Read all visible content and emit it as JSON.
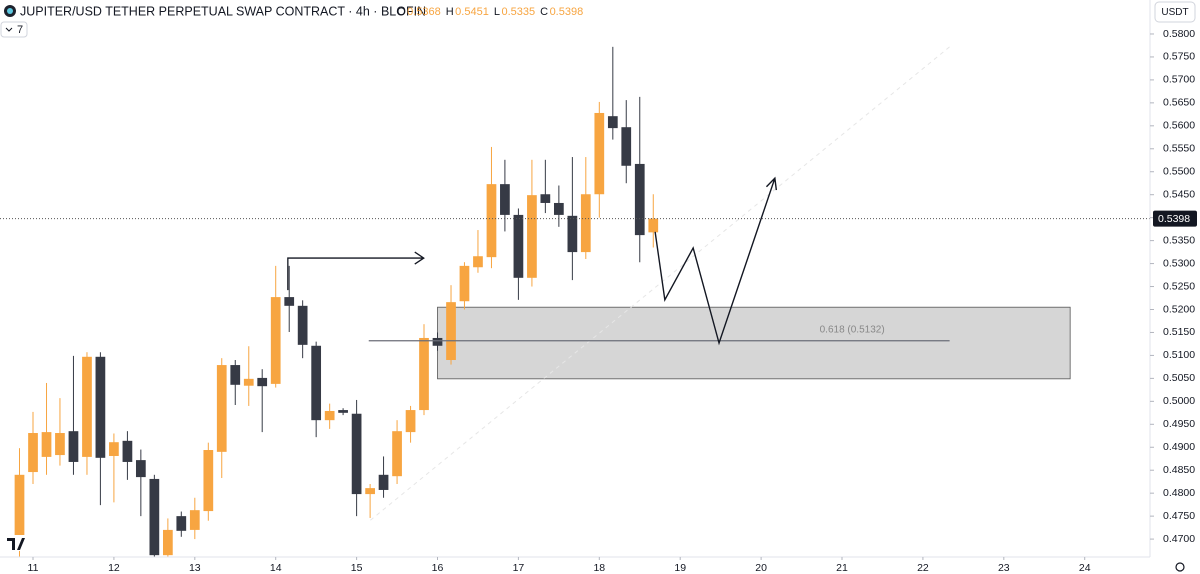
{
  "chart_data": {
    "type": "candlestick",
    "title": "JUPITER/USD TETHER PERPETUAL SWAP CONTRACT · 4h · BLOFIN",
    "ohlc_labels": [
      "O",
      "H",
      "L",
      "C"
    ],
    "indicator_count": "7",
    "currency": "USDT",
    "up_color": "#f7a541",
    "down_color": "#363a45",
    "x": [
      10.833,
      11,
      11.167,
      11.333,
      11.5,
      11.667,
      11.833,
      12,
      12.167,
      12.333,
      12.5,
      12.667,
      12.833,
      13,
      13.167,
      13.333,
      13.5,
      13.667,
      13.833,
      14,
      14.167,
      14.333,
      14.5,
      14.667,
      14.833,
      15,
      15.167,
      15.333,
      15.5,
      15.667,
      15.833,
      16,
      16.167,
      16.333,
      16.5,
      16.667,
      16.833,
      17,
      17.167,
      17.333,
      17.5,
      17.667,
      17.833,
      18,
      18.167,
      18.333,
      18.5,
      18.667
    ],
    "open": [
      0.4698,
      0.4846,
      0.4879,
      0.4883,
      0.4935,
      0.4879,
      0.5097,
      0.4881,
      0.4914,
      0.4872,
      0.4831,
      0.4665,
      0.475,
      0.472,
      0.4761,
      0.489,
      0.5079,
      0.5034,
      0.5051,
      0.5038,
      0.5227,
      0.5208,
      0.5121,
      0.4959,
      0.4981,
      0.4973,
      0.4798,
      0.484,
      0.4837,
      0.4933,
      0.4981,
      0.5138,
      0.509,
      0.5218,
      0.5292,
      0.5314,
      0.5473,
      0.5406,
      0.5269,
      0.5451,
      0.5432,
      0.5404,
      0.5325,
      0.5451,
      0.5621,
      0.5597,
      0.5517,
      0.5368
    ],
    "high": [
      0.4898,
      0.4977,
      0.504,
      0.5007,
      0.5099,
      0.5107,
      0.5107,
      0.493,
      0.4935,
      0.4895,
      0.484,
      0.4745,
      0.476,
      0.479,
      0.491,
      0.5094,
      0.509,
      0.512,
      0.507,
      0.5295,
      0.5295,
      0.522,
      0.513,
      0.4995,
      0.4985,
      0.5003,
      0.482,
      0.488,
      0.4959,
      0.499,
      0.5168,
      0.515,
      0.5253,
      0.5303,
      0.5373,
      0.5554,
      0.5526,
      0.542,
      0.5526,
      0.5526,
      0.547,
      0.5532,
      0.5532,
      0.5652,
      0.5772,
      0.5656,
      0.5663,
      0.5451
    ],
    "low": [
      0.4661,
      0.482,
      0.484,
      0.486,
      0.484,
      0.484,
      0.4774,
      0.478,
      0.4829,
      0.475,
      0.4661,
      0.4661,
      0.4705,
      0.47,
      0.474,
      0.4833,
      0.4992,
      0.499,
      0.4933,
      0.503,
      0.5151,
      0.5094,
      0.4922,
      0.494,
      0.497,
      0.475,
      0.4746,
      0.479,
      0.482,
      0.491,
      0.497,
      0.511,
      0.508,
      0.52,
      0.528,
      0.529,
      0.537,
      0.5221,
      0.525,
      0.541,
      0.538,
      0.5264,
      0.531,
      0.54,
      0.557,
      0.5475,
      0.5303,
      0.5335
    ],
    "close": [
      0.484,
      0.4931,
      0.4933,
      0.4931,
      0.4868,
      0.5097,
      0.4877,
      0.4911,
      0.4868,
      0.4835,
      0.4665,
      0.472,
      0.4718,
      0.4763,
      0.4894,
      0.5079,
      0.5036,
      0.5049,
      0.5033,
      0.5227,
      0.5208,
      0.5123,
      0.4959,
      0.4979,
      0.4975,
      0.4798,
      0.4811,
      0.4807,
      0.4935,
      0.4981,
      0.5138,
      0.5121,
      0.5216,
      0.5295,
      0.5316,
      0.5473,
      0.5406,
      0.5269,
      0.5449,
      0.5432,
      0.5406,
      0.5325,
      0.5451,
      0.5628,
      0.5595,
      0.5513,
      0.5362,
      0.5398
    ],
    "xlim": [
      10.592,
      24.807
    ],
    "xticks": [
      11,
      12,
      13,
      14,
      15,
      16,
      17,
      18,
      19,
      20,
      21,
      22,
      23,
      24
    ],
    "ylim": [
      0.4661,
      0.5874
    ],
    "yticks": [
      {
        "value": 0.47,
        "label": "0.4700"
      },
      {
        "value": 0.475,
        "label": "0.4750"
      },
      {
        "value": 0.48,
        "label": "0.4800"
      },
      {
        "value": 0.485,
        "label": "0.4850"
      },
      {
        "value": 0.49,
        "label": "0.4900"
      },
      {
        "value": 0.495,
        "label": "0.4950"
      },
      {
        "value": 0.5,
        "label": "0.5000"
      },
      {
        "value": 0.505,
        "label": "0.5050"
      },
      {
        "value": 0.51,
        "label": "0.5100"
      },
      {
        "value": 0.515,
        "label": "0.5150"
      },
      {
        "value": 0.52,
        "label": "0.5200"
      },
      {
        "value": 0.525,
        "label": "0.5250"
      },
      {
        "value": 0.53,
        "label": "0.5300"
      },
      {
        "value": 0.535,
        "label": "0.5350"
      },
      {
        "value": 0.54,
        "label": "0.5400"
      },
      {
        "value": 0.545,
        "label": "0.5450"
      },
      {
        "value": 0.55,
        "label": "0.5500"
      },
      {
        "value": 0.555,
        "label": "0.5550"
      },
      {
        "value": 0.56,
        "label": "0.5600"
      },
      {
        "value": 0.565,
        "label": "0.5650"
      },
      {
        "value": 0.57,
        "label": "0.5700"
      },
      {
        "value": 0.575,
        "label": "0.5750"
      },
      {
        "value": 0.58,
        "label": "0.5800"
      }
    ],
    "zone": {
      "x": [
        16.0,
        23.82
      ],
      "y": [
        0.5205,
        0.5049
      ]
    },
    "fib": {
      "x": [
        15.15,
        22.33
      ],
      "y": 0.5132,
      "label": "0.618 (0.5132)"
    },
    "arrow": {
      "x": [
        14.15,
        15.83
      ],
      "y": [
        0.5312,
        0.5312
      ]
    },
    "projection": {
      "x": [
        18.69,
        18.81,
        19.16,
        19.48,
        20.17
      ],
      "y": [
        0.5369,
        0.5221,
        0.5334,
        0.5127,
        0.5486
      ]
    },
    "trend": {
      "x": [
        15.17,
        22.33
      ],
      "y": [
        0.4741,
        0.5772
      ]
    }
  }
}
